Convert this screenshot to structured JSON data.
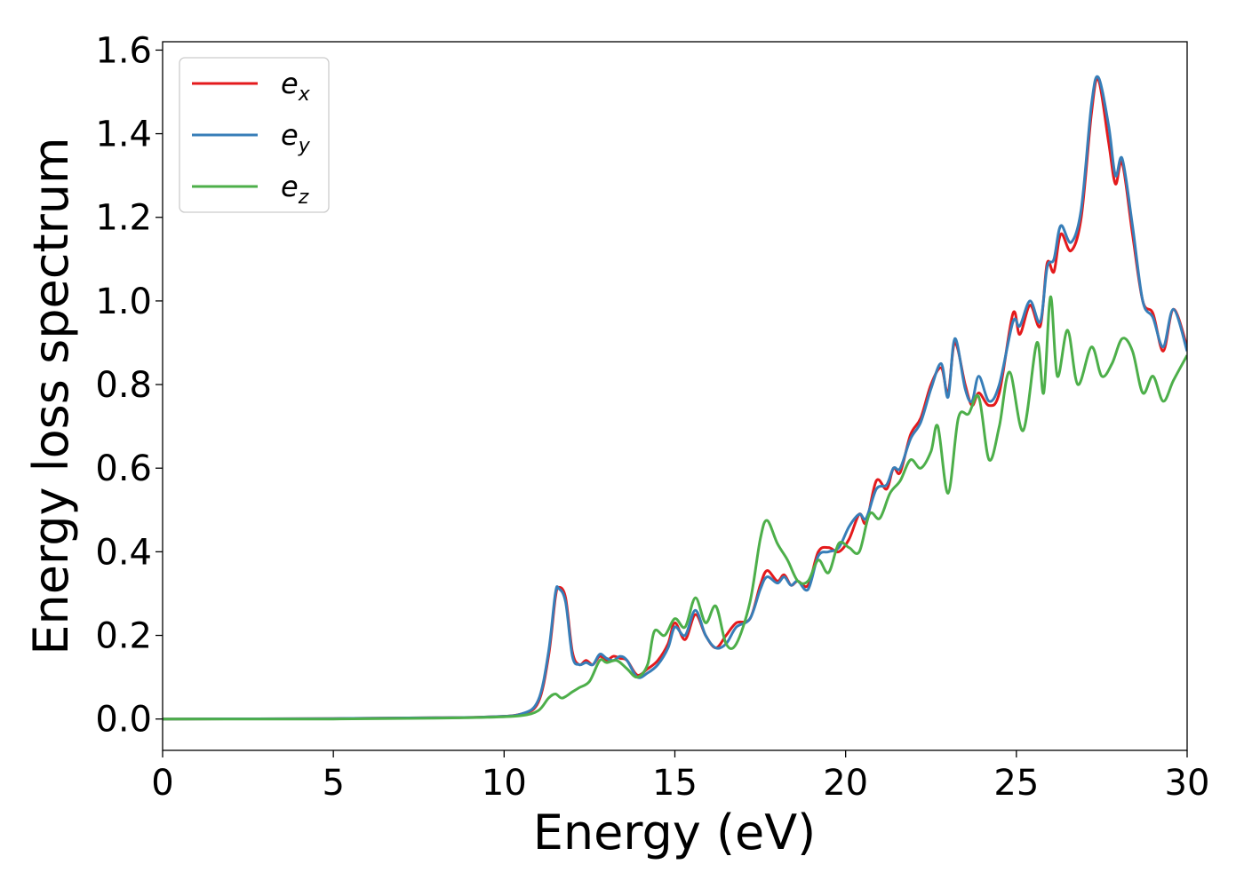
{
  "chart_data": {
    "type": "line",
    "title": "",
    "xlabel": "Energy (eV)",
    "ylabel": "Energy loss spectrum",
    "xlim": [
      0,
      30
    ],
    "ylim": [
      -0.075,
      1.62
    ],
    "xticks": [
      0,
      5,
      10,
      15,
      20,
      25,
      30
    ],
    "xtick_labels": [
      "0",
      "5",
      "10",
      "15",
      "20",
      "25",
      "30"
    ],
    "yticks": [
      0.0,
      0.2,
      0.4,
      0.6,
      0.8,
      1.0,
      1.2,
      1.4,
      1.6
    ],
    "ytick_labels": [
      "0.0",
      "0.2",
      "0.4",
      "0.6",
      "0.8",
      "1.0",
      "1.2",
      "1.4",
      "1.6"
    ],
    "grid": false,
    "legend": {
      "position": "top-left"
    },
    "series": [
      {
        "name": "e_x",
        "label_base": "e",
        "label_sub": "x",
        "color": "#e41a1c",
        "points": [
          [
            0,
            0
          ],
          [
            5,
            0.001
          ],
          [
            8,
            0.003
          ],
          [
            9.5,
            0.005
          ],
          [
            10.5,
            0.012
          ],
          [
            11.0,
            0.04
          ],
          [
            11.3,
            0.15
          ],
          [
            11.5,
            0.29
          ],
          [
            11.6,
            0.315
          ],
          [
            11.8,
            0.29
          ],
          [
            12.0,
            0.16
          ],
          [
            12.2,
            0.13
          ],
          [
            12.4,
            0.14
          ],
          [
            12.6,
            0.13
          ],
          [
            12.8,
            0.15
          ],
          [
            13.0,
            0.14
          ],
          [
            13.2,
            0.15
          ],
          [
            13.4,
            0.145
          ],
          [
            13.6,
            0.14
          ],
          [
            13.9,
            0.105
          ],
          [
            14.2,
            0.12
          ],
          [
            14.5,
            0.14
          ],
          [
            14.8,
            0.18
          ],
          [
            15.0,
            0.23
          ],
          [
            15.3,
            0.19
          ],
          [
            15.6,
            0.25
          ],
          [
            15.9,
            0.2
          ],
          [
            16.2,
            0.17
          ],
          [
            16.5,
            0.2
          ],
          [
            16.8,
            0.23
          ],
          [
            17.2,
            0.24
          ],
          [
            17.5,
            0.32
          ],
          [
            17.7,
            0.355
          ],
          [
            18.0,
            0.33
          ],
          [
            18.2,
            0.345
          ],
          [
            18.4,
            0.32
          ],
          [
            18.6,
            0.33
          ],
          [
            18.9,
            0.32
          ],
          [
            19.2,
            0.4
          ],
          [
            19.5,
            0.41
          ],
          [
            19.8,
            0.4
          ],
          [
            20.1,
            0.43
          ],
          [
            20.4,
            0.49
          ],
          [
            20.6,
            0.47
          ],
          [
            20.9,
            0.57
          ],
          [
            21.2,
            0.55
          ],
          [
            21.4,
            0.6
          ],
          [
            21.6,
            0.59
          ],
          [
            21.9,
            0.68
          ],
          [
            22.2,
            0.72
          ],
          [
            22.5,
            0.8
          ],
          [
            22.8,
            0.84
          ],
          [
            23.0,
            0.78
          ],
          [
            23.2,
            0.9
          ],
          [
            23.5,
            0.8
          ],
          [
            23.7,
            0.75
          ],
          [
            23.9,
            0.78
          ],
          [
            24.2,
            0.75
          ],
          [
            24.5,
            0.78
          ],
          [
            24.9,
            0.97
          ],
          [
            25.1,
            0.92
          ],
          [
            25.4,
            0.99
          ],
          [
            25.7,
            0.94
          ],
          [
            25.9,
            1.09
          ],
          [
            26.1,
            1.07
          ],
          [
            26.3,
            1.16
          ],
          [
            26.6,
            1.12
          ],
          [
            26.9,
            1.2
          ],
          [
            27.2,
            1.45
          ],
          [
            27.4,
            1.53
          ],
          [
            27.7,
            1.38
          ],
          [
            27.9,
            1.28
          ],
          [
            28.1,
            1.33
          ],
          [
            28.4,
            1.16
          ],
          [
            28.7,
            1.0
          ],
          [
            29.0,
            0.97
          ],
          [
            29.3,
            0.88
          ],
          [
            29.6,
            0.98
          ],
          [
            30.0,
            0.89
          ]
        ]
      },
      {
        "name": "e_y",
        "label_base": "e",
        "label_sub": "y",
        "color": "#377eb8",
        "points": [
          [
            0,
            0
          ],
          [
            5,
            0.001
          ],
          [
            8,
            0.003
          ],
          [
            9.5,
            0.005
          ],
          [
            10.5,
            0.012
          ],
          [
            11.0,
            0.045
          ],
          [
            11.3,
            0.16
          ],
          [
            11.5,
            0.3
          ],
          [
            11.6,
            0.312
          ],
          [
            11.8,
            0.28
          ],
          [
            12.0,
            0.15
          ],
          [
            12.2,
            0.13
          ],
          [
            12.4,
            0.135
          ],
          [
            12.6,
            0.13
          ],
          [
            12.8,
            0.155
          ],
          [
            13.0,
            0.145
          ],
          [
            13.2,
            0.14
          ],
          [
            13.4,
            0.15
          ],
          [
            13.6,
            0.14
          ],
          [
            13.9,
            0.1
          ],
          [
            14.2,
            0.11
          ],
          [
            14.5,
            0.13
          ],
          [
            14.8,
            0.17
          ],
          [
            15.0,
            0.22
          ],
          [
            15.3,
            0.2
          ],
          [
            15.6,
            0.26
          ],
          [
            15.9,
            0.2
          ],
          [
            16.2,
            0.17
          ],
          [
            16.5,
            0.18
          ],
          [
            16.8,
            0.22
          ],
          [
            17.2,
            0.24
          ],
          [
            17.5,
            0.31
          ],
          [
            17.7,
            0.34
          ],
          [
            18.0,
            0.325
          ],
          [
            18.2,
            0.34
          ],
          [
            18.4,
            0.32
          ],
          [
            18.6,
            0.33
          ],
          [
            18.9,
            0.31
          ],
          [
            19.2,
            0.39
          ],
          [
            19.5,
            0.4
          ],
          [
            19.8,
            0.41
          ],
          [
            20.1,
            0.46
          ],
          [
            20.4,
            0.49
          ],
          [
            20.6,
            0.48
          ],
          [
            20.9,
            0.55
          ],
          [
            21.2,
            0.56
          ],
          [
            21.4,
            0.6
          ],
          [
            21.6,
            0.6
          ],
          [
            21.9,
            0.67
          ],
          [
            22.2,
            0.71
          ],
          [
            22.5,
            0.79
          ],
          [
            22.8,
            0.85
          ],
          [
            23.0,
            0.77
          ],
          [
            23.2,
            0.91
          ],
          [
            23.5,
            0.79
          ],
          [
            23.7,
            0.76
          ],
          [
            23.9,
            0.82
          ],
          [
            24.2,
            0.76
          ],
          [
            24.5,
            0.8
          ],
          [
            24.9,
            0.95
          ],
          [
            25.1,
            0.94
          ],
          [
            25.4,
            1.0
          ],
          [
            25.7,
            0.95
          ],
          [
            25.9,
            1.08
          ],
          [
            26.1,
            1.1
          ],
          [
            26.3,
            1.18
          ],
          [
            26.6,
            1.14
          ],
          [
            26.9,
            1.22
          ],
          [
            27.2,
            1.47
          ],
          [
            27.4,
            1.535
          ],
          [
            27.7,
            1.42
          ],
          [
            27.9,
            1.3
          ],
          [
            28.1,
            1.34
          ],
          [
            28.4,
            1.18
          ],
          [
            28.7,
            1.0
          ],
          [
            29.0,
            0.96
          ],
          [
            29.3,
            0.89
          ],
          [
            29.6,
            0.98
          ],
          [
            30.0,
            0.88
          ]
        ]
      },
      {
        "name": "e_z",
        "label_base": "e",
        "label_sub": "z",
        "color": "#4daf4a",
        "points": [
          [
            0,
            0
          ],
          [
            5,
            0.0
          ],
          [
            8,
            0.002
          ],
          [
            9.5,
            0.004
          ],
          [
            10.5,
            0.008
          ],
          [
            11.0,
            0.02
          ],
          [
            11.3,
            0.05
          ],
          [
            11.5,
            0.06
          ],
          [
            11.7,
            0.05
          ],
          [
            12.0,
            0.065
          ],
          [
            12.2,
            0.075
          ],
          [
            12.5,
            0.09
          ],
          [
            12.8,
            0.14
          ],
          [
            13.0,
            0.135
          ],
          [
            13.3,
            0.14
          ],
          [
            13.6,
            0.12
          ],
          [
            13.9,
            0.1
          ],
          [
            14.2,
            0.13
          ],
          [
            14.4,
            0.21
          ],
          [
            14.7,
            0.2
          ],
          [
            15.0,
            0.24
          ],
          [
            15.3,
            0.22
          ],
          [
            15.6,
            0.29
          ],
          [
            15.9,
            0.23
          ],
          [
            16.2,
            0.27
          ],
          [
            16.5,
            0.18
          ],
          [
            16.8,
            0.18
          ],
          [
            17.2,
            0.28
          ],
          [
            17.5,
            0.43
          ],
          [
            17.7,
            0.475
          ],
          [
            18.0,
            0.42
          ],
          [
            18.3,
            0.38
          ],
          [
            18.6,
            0.33
          ],
          [
            18.9,
            0.33
          ],
          [
            19.2,
            0.38
          ],
          [
            19.5,
            0.35
          ],
          [
            19.8,
            0.42
          ],
          [
            20.1,
            0.41
          ],
          [
            20.4,
            0.4
          ],
          [
            20.7,
            0.49
          ],
          [
            21.0,
            0.48
          ],
          [
            21.3,
            0.54
          ],
          [
            21.6,
            0.57
          ],
          [
            21.9,
            0.62
          ],
          [
            22.2,
            0.6
          ],
          [
            22.5,
            0.64
          ],
          [
            22.7,
            0.7
          ],
          [
            23.0,
            0.54
          ],
          [
            23.3,
            0.72
          ],
          [
            23.6,
            0.73
          ],
          [
            23.9,
            0.77
          ],
          [
            24.2,
            0.62
          ],
          [
            24.5,
            0.7
          ],
          [
            24.8,
            0.83
          ],
          [
            25.2,
            0.69
          ],
          [
            25.6,
            0.9
          ],
          [
            25.8,
            0.78
          ],
          [
            26.0,
            1.01
          ],
          [
            26.2,
            0.82
          ],
          [
            26.5,
            0.93
          ],
          [
            26.8,
            0.8
          ],
          [
            27.2,
            0.89
          ],
          [
            27.5,
            0.82
          ],
          [
            27.8,
            0.85
          ],
          [
            28.1,
            0.91
          ],
          [
            28.4,
            0.88
          ],
          [
            28.7,
            0.78
          ],
          [
            29.0,
            0.82
          ],
          [
            29.3,
            0.76
          ],
          [
            29.6,
            0.81
          ],
          [
            30.0,
            0.87
          ]
        ]
      }
    ]
  }
}
